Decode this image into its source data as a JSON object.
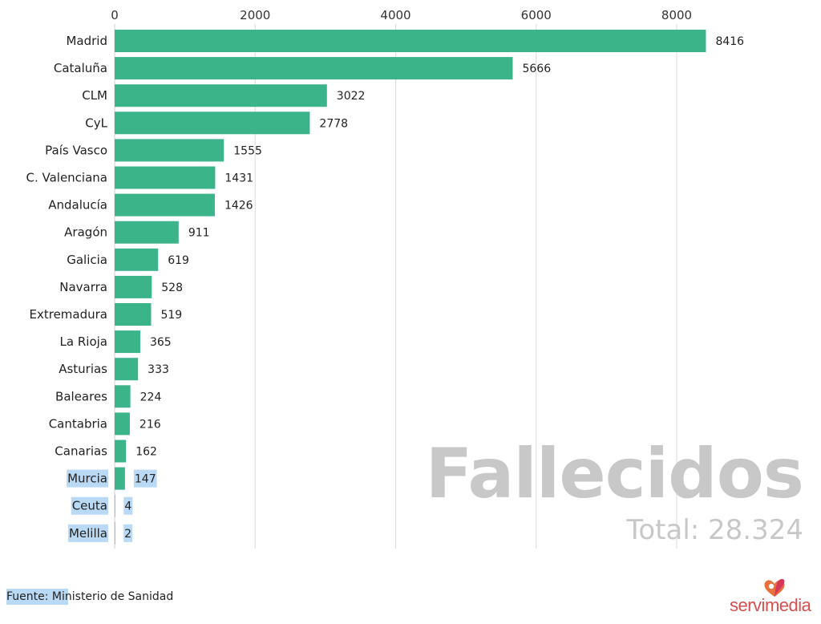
{
  "chart_data": {
    "type": "bar",
    "orientation": "horizontal",
    "categories": [
      "Madrid",
      "Cataluña",
      "CLM",
      "CyL",
      "País Vasco",
      "C. Valenciana",
      "Andalucía",
      "Aragón",
      "Galicia",
      "Navarra",
      "Extremadura",
      "La Rioja",
      "Asturias",
      "Baleares",
      "Cantabria",
      "Canarias",
      "Murcia",
      "Ceuta",
      "Melilla"
    ],
    "values": [
      8416,
      5666,
      3022,
      2778,
      1555,
      1431,
      1426,
      911,
      619,
      528,
      519,
      365,
      333,
      224,
      216,
      162,
      147,
      4,
      2
    ],
    "value_labels": [
      "8416",
      "5666",
      "3022",
      "2778",
      "1555",
      "1431",
      "1426",
      "911",
      "619",
      "528",
      "519",
      "365",
      "333",
      "224",
      "216",
      "162",
      "147",
      "4",
      "2"
    ],
    "xticks": [
      0,
      2000,
      4000,
      6000,
      8000
    ],
    "xtick_labels": [
      "0",
      "2000",
      "4000",
      "6000",
      "8000"
    ],
    "xlim": [
      0,
      8416
    ],
    "xaxis_position": "top",
    "grid": true,
    "highlighted_categories": [
      "Murcia",
      "Ceuta",
      "Melilla"
    ],
    "title": "",
    "xlabel": "",
    "ylabel": ""
  },
  "colors": {
    "bar": "#3cb48a",
    "highlight": "#b9d9f5",
    "watermark": "#c8c8c8",
    "brand": "#d94e4e"
  },
  "watermark": {
    "title": "Fallecidos",
    "total": "Total: 28.324"
  },
  "source": {
    "label": "Fuente: Ministerio de Sanidad"
  },
  "logo": {
    "text": "servimedia",
    "icon": "servimedia-logo-icon"
  }
}
